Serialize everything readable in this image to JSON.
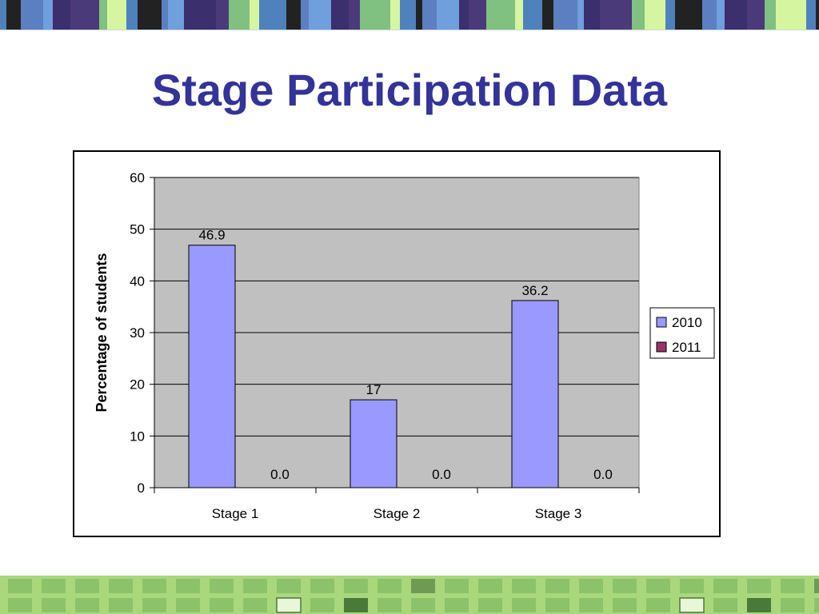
{
  "slide": {
    "title": "Stage Participation Data"
  },
  "colors": {
    "title": "#333399",
    "plot_area": "#c0c0c0",
    "series_2010": "#9999ff",
    "series_2011": "#993366",
    "top_band": [
      "#4f81bd",
      "#6f9fdc",
      "#80c080",
      "#222222",
      "#3b2f6e",
      "#d6f5a0",
      "#5b7fc0",
      "#4a3a7a"
    ],
    "bottom_band": [
      "#a9d77c",
      "#8cc36a",
      "#6f9a52",
      "#4a7a3a"
    ]
  },
  "chart_data": {
    "type": "bar",
    "title": "",
    "xlabel": "",
    "ylabel": "Percentage of students",
    "categories": [
      "Stage 1",
      "Stage 2",
      "Stage 3"
    ],
    "series": [
      {
        "name": "2010",
        "values": [
          46.9,
          17,
          36.2
        ],
        "labels": [
          "46.9",
          "17",
          "36.2"
        ]
      },
      {
        "name": "2011",
        "values": [
          0,
          0,
          0
        ],
        "labels": [
          "0.0",
          "0.0",
          "0.0"
        ]
      }
    ],
    "ylim": [
      0,
      60
    ],
    "yticks": [
      0,
      10,
      20,
      30,
      40,
      50,
      60
    ],
    "grid": true,
    "legend": "right"
  }
}
